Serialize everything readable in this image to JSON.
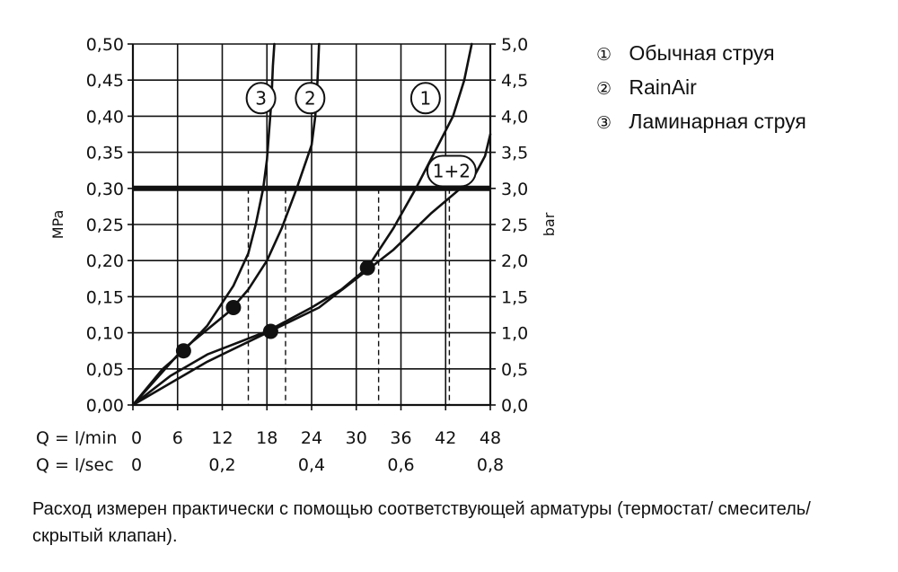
{
  "chart_data": {
    "type": "line",
    "title": "",
    "ylabel_left": "MPa",
    "ylabel_right": "bar",
    "y_left_ticks": [
      "0,00",
      "0,05",
      "0,10",
      "0,15",
      "0,20",
      "0,25",
      "0,30",
      "0,35",
      "0,40",
      "0,45",
      "0,50"
    ],
    "y_right_ticks": [
      "0,0",
      "0,5",
      "1,0",
      "1,5",
      "2,0",
      "2,5",
      "3,0",
      "3,5",
      "4,0",
      "4,5",
      "5,0"
    ],
    "xlabel_lmin": "Q = l/min",
    "x_ticks_lmin": [
      "0",
      "6",
      "12",
      "18",
      "24",
      "30",
      "36",
      "42",
      "48"
    ],
    "xlabel_lsec": "Q = l/sec",
    "x_ticks_lsec": [
      "0",
      "0,2",
      "0,4",
      "0,6",
      "0,8"
    ],
    "xlim": [
      0,
      48
    ],
    "ylim": [
      0,
      0.5
    ],
    "grid": true,
    "reference_line": {
      "y": 0.3
    },
    "series": [
      {
        "name": "1",
        "points": [
          [
            0,
            0
          ],
          [
            5,
            0.04
          ],
          [
            10,
            0.07
          ],
          [
            18,
            0.102
          ],
          [
            24,
            0.135
          ],
          [
            28,
            0.16
          ],
          [
            31.5,
            0.19
          ],
          [
            35,
            0.245
          ],
          [
            38,
            0.3
          ],
          [
            41,
            0.36
          ],
          [
            43,
            0.4
          ],
          [
            44.5,
            0.45
          ],
          [
            45.5,
            0.5
          ]
        ]
      },
      {
        "name": "2",
        "points": [
          [
            0,
            0
          ],
          [
            6.5,
            0.075
          ],
          [
            13,
            0.13
          ],
          [
            15.5,
            0.16
          ],
          [
            18,
            0.2
          ],
          [
            20,
            0.245
          ],
          [
            22,
            0.3
          ],
          [
            23,
            0.33
          ],
          [
            24,
            0.36
          ],
          [
            24.5,
            0.4
          ],
          [
            24.8,
            0.45
          ],
          [
            25,
            0.5
          ]
        ]
      },
      {
        "name": "3",
        "points": [
          [
            0,
            0
          ],
          [
            4,
            0.05
          ],
          [
            6.8,
            0.075
          ],
          [
            10,
            0.11
          ],
          [
            13.5,
            0.165
          ],
          [
            15.5,
            0.21
          ],
          [
            16.5,
            0.25
          ],
          [
            17.5,
            0.3
          ],
          [
            18,
            0.34
          ],
          [
            18.3,
            0.38
          ],
          [
            18.6,
            0.42
          ],
          [
            18.8,
            0.47
          ],
          [
            19,
            0.5
          ]
        ]
      },
      {
        "name": "1+2",
        "points": [
          [
            0,
            0
          ],
          [
            10,
            0.06
          ],
          [
            20,
            0.11
          ],
          [
            25,
            0.135
          ],
          [
            30,
            0.175
          ],
          [
            35,
            0.215
          ],
          [
            40,
            0.265
          ],
          [
            44,
            0.3
          ],
          [
            46,
            0.32
          ],
          [
            47.3,
            0.345
          ],
          [
            48,
            0.375
          ]
        ]
      }
    ],
    "markers": [
      {
        "x": 6.8,
        "y": 0.075
      },
      {
        "x": 13.5,
        "y": 0.135
      },
      {
        "x": 18.5,
        "y": 0.102
      },
      {
        "x": 31.5,
        "y": 0.19
      }
    ],
    "dashed_drops": [
      {
        "x": 15.5,
        "y": 0.3
      },
      {
        "x": 20.5,
        "y": 0.3
      },
      {
        "x": 33.0,
        "y": 0.3
      },
      {
        "x": 42.5,
        "y": 0.3
      }
    ],
    "curve_labels": [
      {
        "text": "3",
        "x": 17.2,
        "y": 0.425
      },
      {
        "text": "2",
        "x": 23.8,
        "y": 0.425
      },
      {
        "text": "1",
        "x": 39.3,
        "y": 0.425
      },
      {
        "text": "1+2",
        "x": 42.8,
        "y": 0.324
      }
    ],
    "legend": [
      {
        "marker": "①",
        "label": "Обычная струя"
      },
      {
        "marker": "②",
        "label": "RainAir"
      },
      {
        "marker": "③",
        "label": "Ламинарная струя"
      }
    ]
  },
  "note": "Расход измерен практически с помощью соответствующей арматуры (термостат/ смеситель/скрытый клапан)."
}
